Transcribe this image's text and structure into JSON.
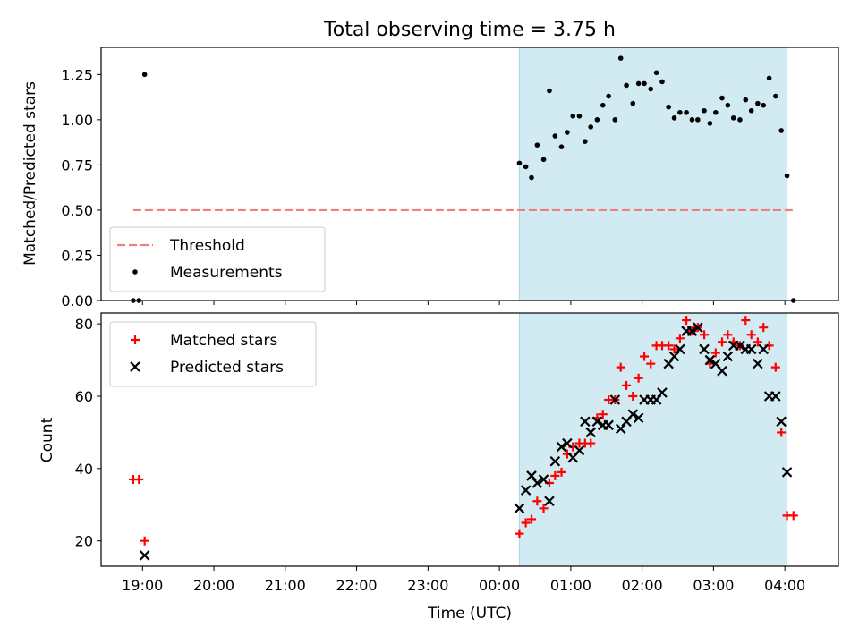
{
  "chart_data": [
    {
      "type": "scatter",
      "title": "Total observing time = 3.75 h",
      "xlabel": "",
      "ylabel": "Matched/Predicted stars",
      "xlim_hours": [
        18.42,
        28.75
      ],
      "ylim": [
        0,
        1.4
      ],
      "yticks": [
        "0.00",
        "0.25",
        "0.50",
        "0.75",
        "1.00",
        "1.25"
      ],
      "shaded_span_hours": [
        24.28,
        28.03
      ],
      "shade_color": "#add8e6",
      "threshold": {
        "name": "Threshold",
        "value": 0.5,
        "x_range_hours": [
          18.87,
          28.12
        ],
        "color": "#f08080"
      },
      "series": [
        {
          "name": "Measurements",
          "color": "#000000",
          "marker": "dot",
          "points": [
            [
              18.87,
              0.0
            ],
            [
              18.95,
              0.0
            ],
            [
              19.03,
              1.25
            ],
            [
              24.28,
              0.76
            ],
            [
              24.37,
              0.74
            ],
            [
              24.45,
              0.68
            ],
            [
              24.53,
              0.86
            ],
            [
              24.62,
              0.78
            ],
            [
              24.7,
              1.16
            ],
            [
              24.78,
              0.91
            ],
            [
              24.87,
              0.85
            ],
            [
              24.95,
              0.93
            ],
            [
              25.03,
              1.02
            ],
            [
              25.12,
              1.02
            ],
            [
              25.2,
              0.88
            ],
            [
              25.28,
              0.96
            ],
            [
              25.37,
              1.0
            ],
            [
              25.45,
              1.08
            ],
            [
              25.53,
              1.13
            ],
            [
              25.62,
              1.0
            ],
            [
              25.7,
              1.34
            ],
            [
              25.78,
              1.19
            ],
            [
              25.87,
              1.09
            ],
            [
              25.95,
              1.2
            ],
            [
              26.03,
              1.2
            ],
            [
              26.12,
              1.17
            ],
            [
              26.2,
              1.26
            ],
            [
              26.28,
              1.21
            ],
            [
              26.37,
              1.07
            ],
            [
              26.45,
              1.01
            ],
            [
              26.53,
              1.04
            ],
            [
              26.62,
              1.04
            ],
            [
              26.7,
              1.0
            ],
            [
              26.78,
              1.0
            ],
            [
              26.87,
              1.05
            ],
            [
              26.95,
              0.98
            ],
            [
              27.03,
              1.04
            ],
            [
              27.12,
              1.12
            ],
            [
              27.2,
              1.08
            ],
            [
              27.28,
              1.01
            ],
            [
              27.37,
              1.0
            ],
            [
              27.45,
              1.11
            ],
            [
              27.53,
              1.05
            ],
            [
              27.62,
              1.09
            ],
            [
              27.7,
              1.08
            ],
            [
              27.78,
              1.23
            ],
            [
              27.87,
              1.13
            ],
            [
              27.95,
              0.94
            ],
            [
              28.03,
              0.69
            ],
            [
              28.12,
              0.0
            ]
          ]
        }
      ],
      "legend_placement": "lower-left"
    },
    {
      "type": "scatter",
      "title": "",
      "xlabel": "Time (UTC)",
      "ylabel": "Count",
      "xlim_hours": [
        18.42,
        28.75
      ],
      "ylim": [
        13,
        83
      ],
      "yticks": [
        "20",
        "40",
        "60",
        "80"
      ],
      "xticks": [
        "19:00",
        "20:00",
        "21:00",
        "22:00",
        "23:00",
        "00:00",
        "01:00",
        "02:00",
        "03:00",
        "04:00"
      ],
      "shaded_span_hours": [
        24.28,
        28.03
      ],
      "shade_color": "#add8e6",
      "series": [
        {
          "name": "Matched stars",
          "color": "#ff0000",
          "marker": "plus",
          "points": [
            [
              18.87,
              37
            ],
            [
              18.95,
              37
            ],
            [
              19.03,
              20
            ],
            [
              24.28,
              22
            ],
            [
              24.37,
              25
            ],
            [
              24.45,
              26
            ],
            [
              24.53,
              31
            ],
            [
              24.62,
              29
            ],
            [
              24.7,
              36
            ],
            [
              24.78,
              38
            ],
            [
              24.87,
              39
            ],
            [
              24.95,
              44
            ],
            [
              25.03,
              46
            ],
            [
              25.12,
              47
            ],
            [
              25.2,
              47
            ],
            [
              25.28,
              47
            ],
            [
              25.37,
              54
            ],
            [
              25.45,
              55
            ],
            [
              25.53,
              59
            ],
            [
              25.62,
              59
            ],
            [
              25.7,
              68
            ],
            [
              25.78,
              63
            ],
            [
              25.87,
              60
            ],
            [
              25.95,
              65
            ],
            [
              26.03,
              71
            ],
            [
              26.12,
              69
            ],
            [
              26.2,
              74
            ],
            [
              26.28,
              74
            ],
            [
              26.37,
              74
            ],
            [
              26.45,
              73
            ],
            [
              26.53,
              76
            ],
            [
              26.62,
              81
            ],
            [
              26.7,
              78
            ],
            [
              26.78,
              79
            ],
            [
              26.87,
              77
            ],
            [
              26.95,
              69
            ],
            [
              27.03,
              72
            ],
            [
              27.12,
              75
            ],
            [
              27.2,
              77
            ],
            [
              27.28,
              75
            ],
            [
              27.37,
              74
            ],
            [
              27.45,
              81
            ],
            [
              27.53,
              77
            ],
            [
              27.62,
              75
            ],
            [
              27.7,
              79
            ],
            [
              27.78,
              74
            ],
            [
              27.87,
              68
            ],
            [
              27.95,
              50
            ],
            [
              28.03,
              27
            ],
            [
              28.12,
              27
            ]
          ]
        },
        {
          "name": "Predicted stars",
          "color": "#000000",
          "marker": "x",
          "points": [
            [
              19.03,
              16
            ],
            [
              24.28,
              29
            ],
            [
              24.37,
              34
            ],
            [
              24.45,
              38
            ],
            [
              24.53,
              36
            ],
            [
              24.62,
              37
            ],
            [
              24.7,
              31
            ],
            [
              24.78,
              42
            ],
            [
              24.87,
              46
            ],
            [
              24.95,
              47
            ],
            [
              25.03,
              43
            ],
            [
              25.12,
              45
            ],
            [
              25.2,
              53
            ],
            [
              25.28,
              50
            ],
            [
              25.37,
              53
            ],
            [
              25.45,
              52
            ],
            [
              25.53,
              52
            ],
            [
              25.62,
              59
            ],
            [
              25.7,
              51
            ],
            [
              25.78,
              53
            ],
            [
              25.87,
              55
            ],
            [
              25.95,
              54
            ],
            [
              26.03,
              59
            ],
            [
              26.12,
              59
            ],
            [
              26.2,
              59
            ],
            [
              26.28,
              61
            ],
            [
              26.37,
              69
            ],
            [
              26.45,
              71
            ],
            [
              26.53,
              73
            ],
            [
              26.62,
              78
            ],
            [
              26.7,
              78
            ],
            [
              26.78,
              79
            ],
            [
              26.87,
              73
            ],
            [
              26.95,
              70
            ],
            [
              27.03,
              69
            ],
            [
              27.12,
              67
            ],
            [
              27.2,
              71
            ],
            [
              27.28,
              74
            ],
            [
              27.37,
              74
            ],
            [
              27.45,
              73
            ],
            [
              27.53,
              73
            ],
            [
              27.62,
              69
            ],
            [
              27.7,
              73
            ],
            [
              27.78,
              60
            ],
            [
              27.87,
              60
            ],
            [
              27.95,
              53
            ],
            [
              28.03,
              39
            ]
          ]
        }
      ],
      "legend_placement": "upper-left"
    }
  ]
}
